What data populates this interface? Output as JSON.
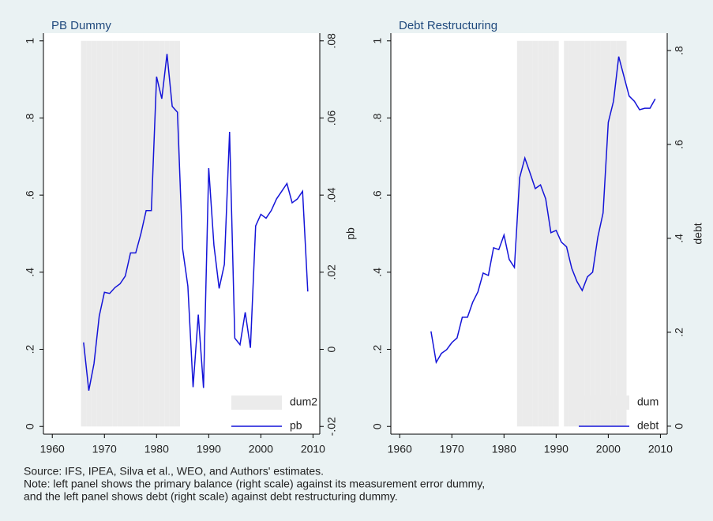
{
  "chart_data": [
    {
      "type": "combo",
      "title": "PB Dummy",
      "y2label": "pb",
      "legend": "lower right",
      "x": [
        1966,
        1967,
        1968,
        1969,
        1970,
        1971,
        1972,
        1973,
        1974,
        1975,
        1976,
        1977,
        1978,
        1979,
        1980,
        1981,
        1982,
        1983,
        1984,
        1985,
        1986,
        1987,
        1988,
        1989,
        1990,
        1991,
        1992,
        1993,
        1994,
        1995,
        1996,
        1997,
        1998,
        1999,
        2000,
        2001,
        2002,
        2003,
        2004,
        2005,
        2006,
        2007,
        2008,
        2009
      ],
      "series": [
        {
          "name": "dum2",
          "mark": "bar",
          "axis": "y",
          "color": "#ebebeb",
          "values": [
            1,
            1,
            1,
            1,
            1,
            1,
            1,
            1,
            1,
            1,
            1,
            1,
            1,
            1,
            1,
            1,
            1,
            1,
            1,
            0,
            0,
            0,
            0,
            0,
            0,
            0,
            0,
            0,
            0,
            0,
            0,
            0,
            0,
            0,
            0,
            0,
            0,
            0,
            0,
            0,
            0,
            0,
            0,
            0
          ]
        },
        {
          "name": "pb",
          "mark": "line",
          "axis": "y2",
          "color": "#1414d8",
          "values": [
            0.0018,
            -0.0107,
            -0.0037,
            0.0086,
            0.0148,
            0.0145,
            0.016,
            0.017,
            0.019,
            0.025,
            0.025,
            0.03,
            0.036,
            0.036,
            0.0707,
            0.065,
            0.0766,
            0.063,
            0.0615,
            0.026,
            0.0164,
            -0.0098,
            0.009,
            -0.01,
            0.047,
            0.027,
            0.0158,
            0.022,
            0.0564,
            0.0029,
            0.0012,
            0.0096,
            0.0004,
            0.032,
            0.035,
            0.034,
            0.036,
            0.039,
            0.041,
            0.043,
            0.038,
            0.039,
            0.041,
            0.015
          ]
        }
      ],
      "xlim": [
        1958.3,
        2011.3
      ],
      "xticks": [
        1960,
        1970,
        1980,
        1990,
        2000,
        2010
      ],
      "ylim": [
        -0.02,
        1.02
      ],
      "yticks": [
        0,
        {
          "value": 0.2,
          "label": ".2"
        },
        {
          "value": 0.4,
          "label": ".4"
        },
        {
          "value": 0.6,
          "label": ".6"
        },
        {
          "value": 0.8,
          "label": ".8"
        },
        1
      ],
      "y2lim": [
        -0.022,
        0.082
      ],
      "y2ticks": [
        {
          "value": -0.02,
          "label": "-.02"
        },
        0,
        {
          "value": 0.02,
          "label": ".02"
        },
        {
          "value": 0.04,
          "label": ".04"
        },
        {
          "value": 0.06,
          "label": ".06"
        },
        {
          "value": 0.08,
          "label": ".08"
        }
      ]
    },
    {
      "type": "combo",
      "title": "Debt Restructuring",
      "y2label": "debt",
      "legend": "lower right",
      "x": [
        1966,
        1967,
        1968,
        1969,
        1970,
        1971,
        1972,
        1973,
        1974,
        1975,
        1976,
        1977,
        1978,
        1979,
        1980,
        1981,
        1982,
        1983,
        1984,
        1985,
        1986,
        1987,
        1988,
        1989,
        1990,
        1991,
        1992,
        1993,
        1994,
        1995,
        1996,
        1997,
        1998,
        1999,
        2000,
        2001,
        2002,
        2003,
        2004,
        2005,
        2006,
        2007,
        2008,
        2009
      ],
      "series": [
        {
          "name": "dum",
          "mark": "bar",
          "axis": "y",
          "color": "#ebebeb",
          "values": [
            0,
            0,
            0,
            0,
            0,
            0,
            0,
            0,
            0,
            0,
            0,
            0,
            0,
            0,
            0,
            0,
            0,
            1,
            1,
            1,
            1,
            1,
            1,
            1,
            1,
            0,
            1,
            1,
            1,
            1,
            1,
            1,
            1,
            1,
            1,
            1,
            1,
            1,
            0,
            0,
            0,
            0,
            0,
            0
          ]
        },
        {
          "name": "debt",
          "mark": "line",
          "axis": "y2",
          "color": "#1414d8",
          "values": [
            0.202,
            0.136,
            0.155,
            0.163,
            0.178,
            0.188,
            0.232,
            0.232,
            0.264,
            0.286,
            0.326,
            0.321,
            0.38,
            0.376,
            0.407,
            0.355,
            0.338,
            0.529,
            0.571,
            0.539,
            0.506,
            0.514,
            0.484,
            0.412,
            0.417,
            0.392,
            0.382,
            0.336,
            0.308,
            0.289,
            0.318,
            0.328,
            0.403,
            0.454,
            0.647,
            0.692,
            0.787,
            0.745,
            0.703,
            0.692,
            0.674,
            0.677,
            0.677,
            0.697
          ]
        }
      ],
      "xlim": [
        1958.3,
        2011.3
      ],
      "xticks": [
        1960,
        1970,
        1980,
        1990,
        2000,
        2010
      ],
      "ylim": [
        -0.02,
        1.02
      ],
      "yticks": [
        0,
        {
          "value": 0.2,
          "label": ".2"
        },
        {
          "value": 0.4,
          "label": ".4"
        },
        {
          "value": 0.6,
          "label": ".6"
        },
        {
          "value": 0.8,
          "label": ".8"
        },
        1
      ],
      "y2lim": [
        -0.017,
        0.837
      ],
      "y2ticks": [
        0,
        {
          "value": 0.2,
          "label": ".2"
        },
        {
          "value": 0.4,
          "label": ".4"
        },
        {
          "value": 0.6,
          "label": ".6"
        },
        {
          "value": 0.8,
          "label": ".8"
        }
      ]
    }
  ],
  "notes": [
    "Source: IFS, IPEA, Silva et al., WEO, and Authors' estimates.",
    "Note: left panel shows the primary balance (right scale) against its measurement error dummy,",
    "and the left panel shows debt (right scale) against debt restructuring dummy."
  ]
}
